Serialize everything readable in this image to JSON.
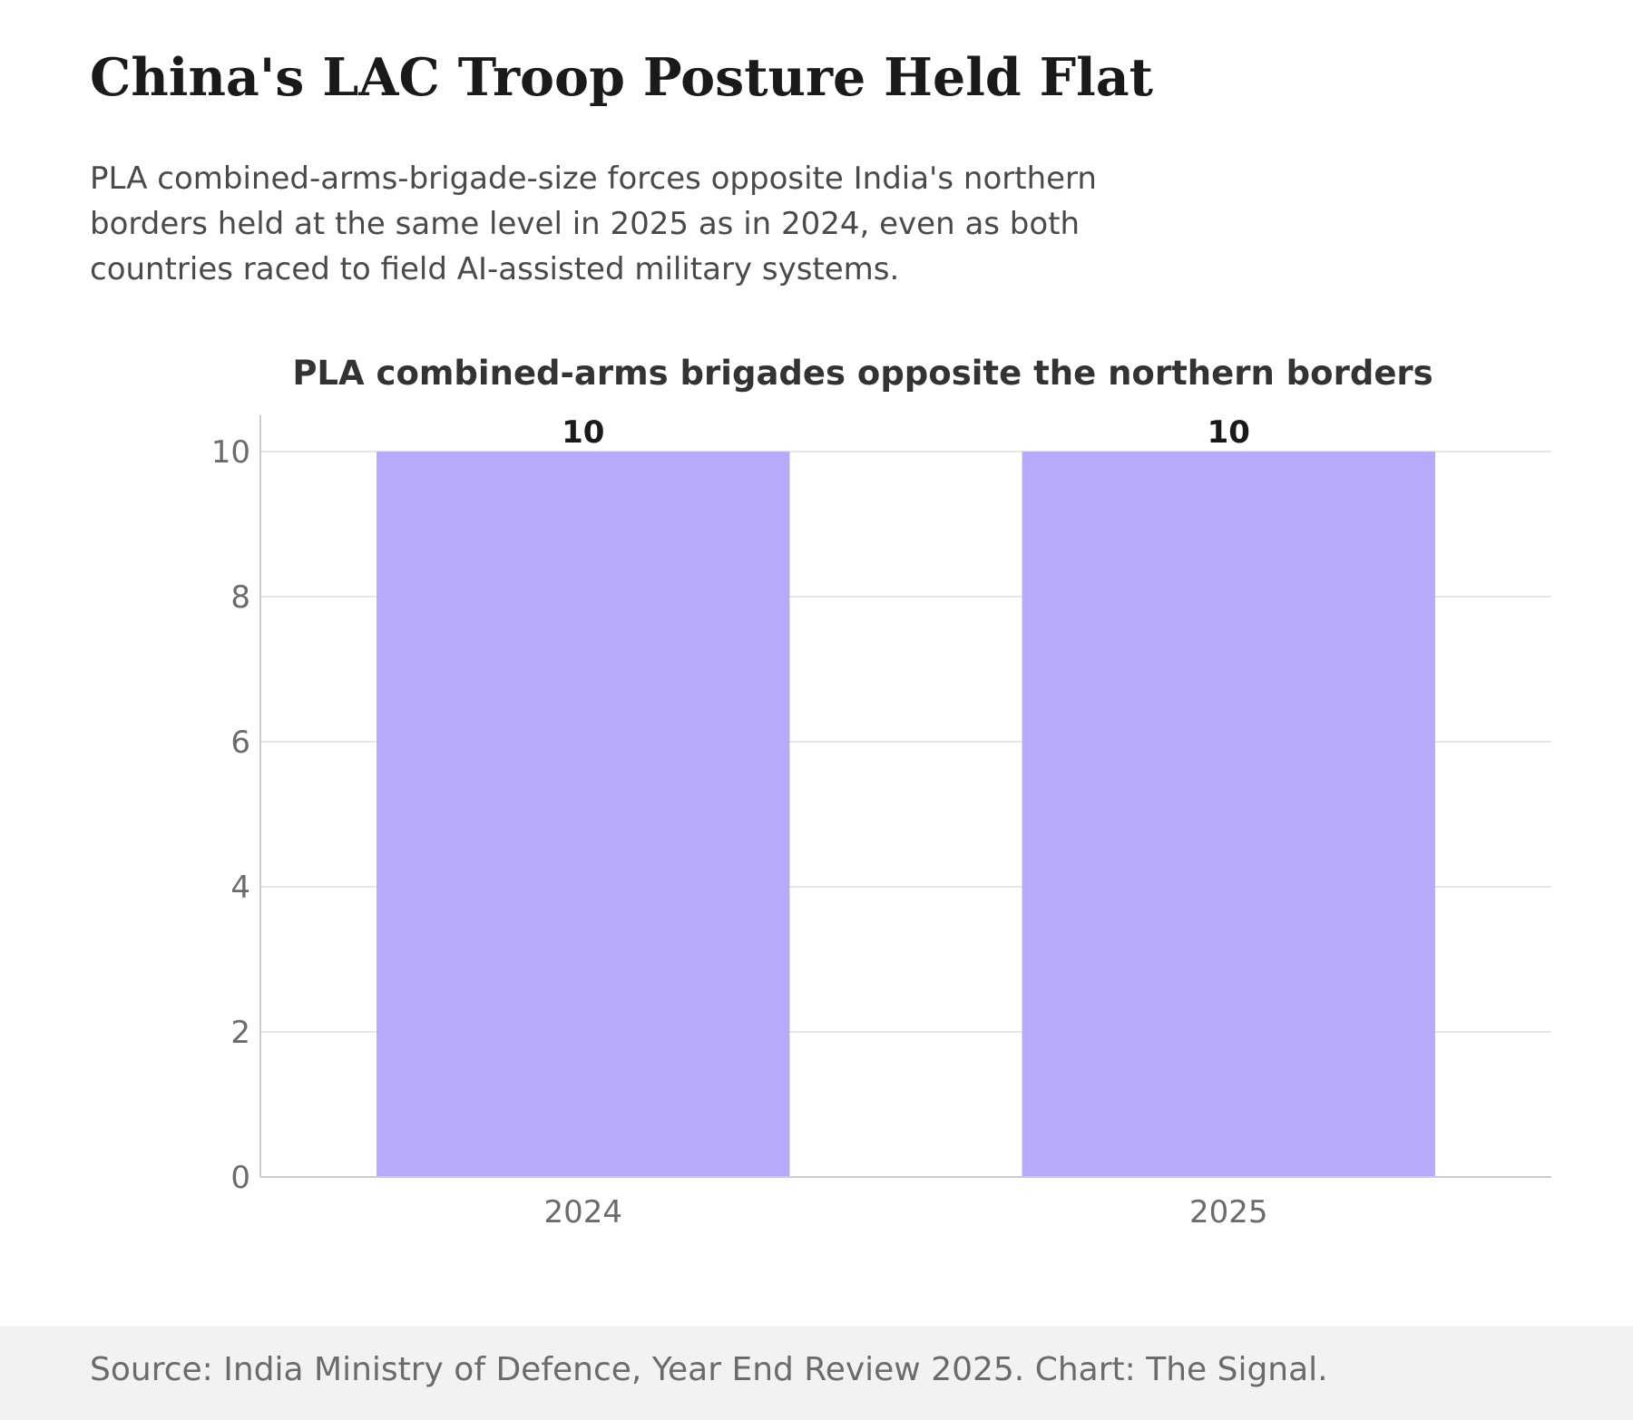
{
  "headline": "China's LAC Troop Posture Held Flat",
  "dek": "PLA combined-arms-brigade-size forces opposite India's northern borders held at the same level in 2025 as in 2024, even as both countries raced to field AI-assisted military systems.",
  "source": "Source: India Ministry of Defence, Year End Review 2025. Chart: The Signal.",
  "chart_data": {
    "type": "bar",
    "title": "PLA combined-arms brigades opposite the northern borders",
    "categories": [
      "2024",
      "2025"
    ],
    "values": [
      10,
      10
    ],
    "data_labels": [
      "10",
      "10"
    ],
    "xlabel": "",
    "ylabel": "",
    "ylim": [
      0,
      10.5
    ],
    "yticks": [
      0,
      2,
      4,
      6,
      8,
      10
    ],
    "ytick_labels": [
      "0",
      "2",
      "4",
      "6",
      "8",
      "10"
    ],
    "grid": true,
    "legend": "none",
    "colors": {
      "bar": "#b8a9fd",
      "grid": "#e0e0e0",
      "axis": "#cccccc",
      "tick_text": "#6b6b6b",
      "data_label": "#1a1a1a",
      "title": "#333333"
    }
  }
}
